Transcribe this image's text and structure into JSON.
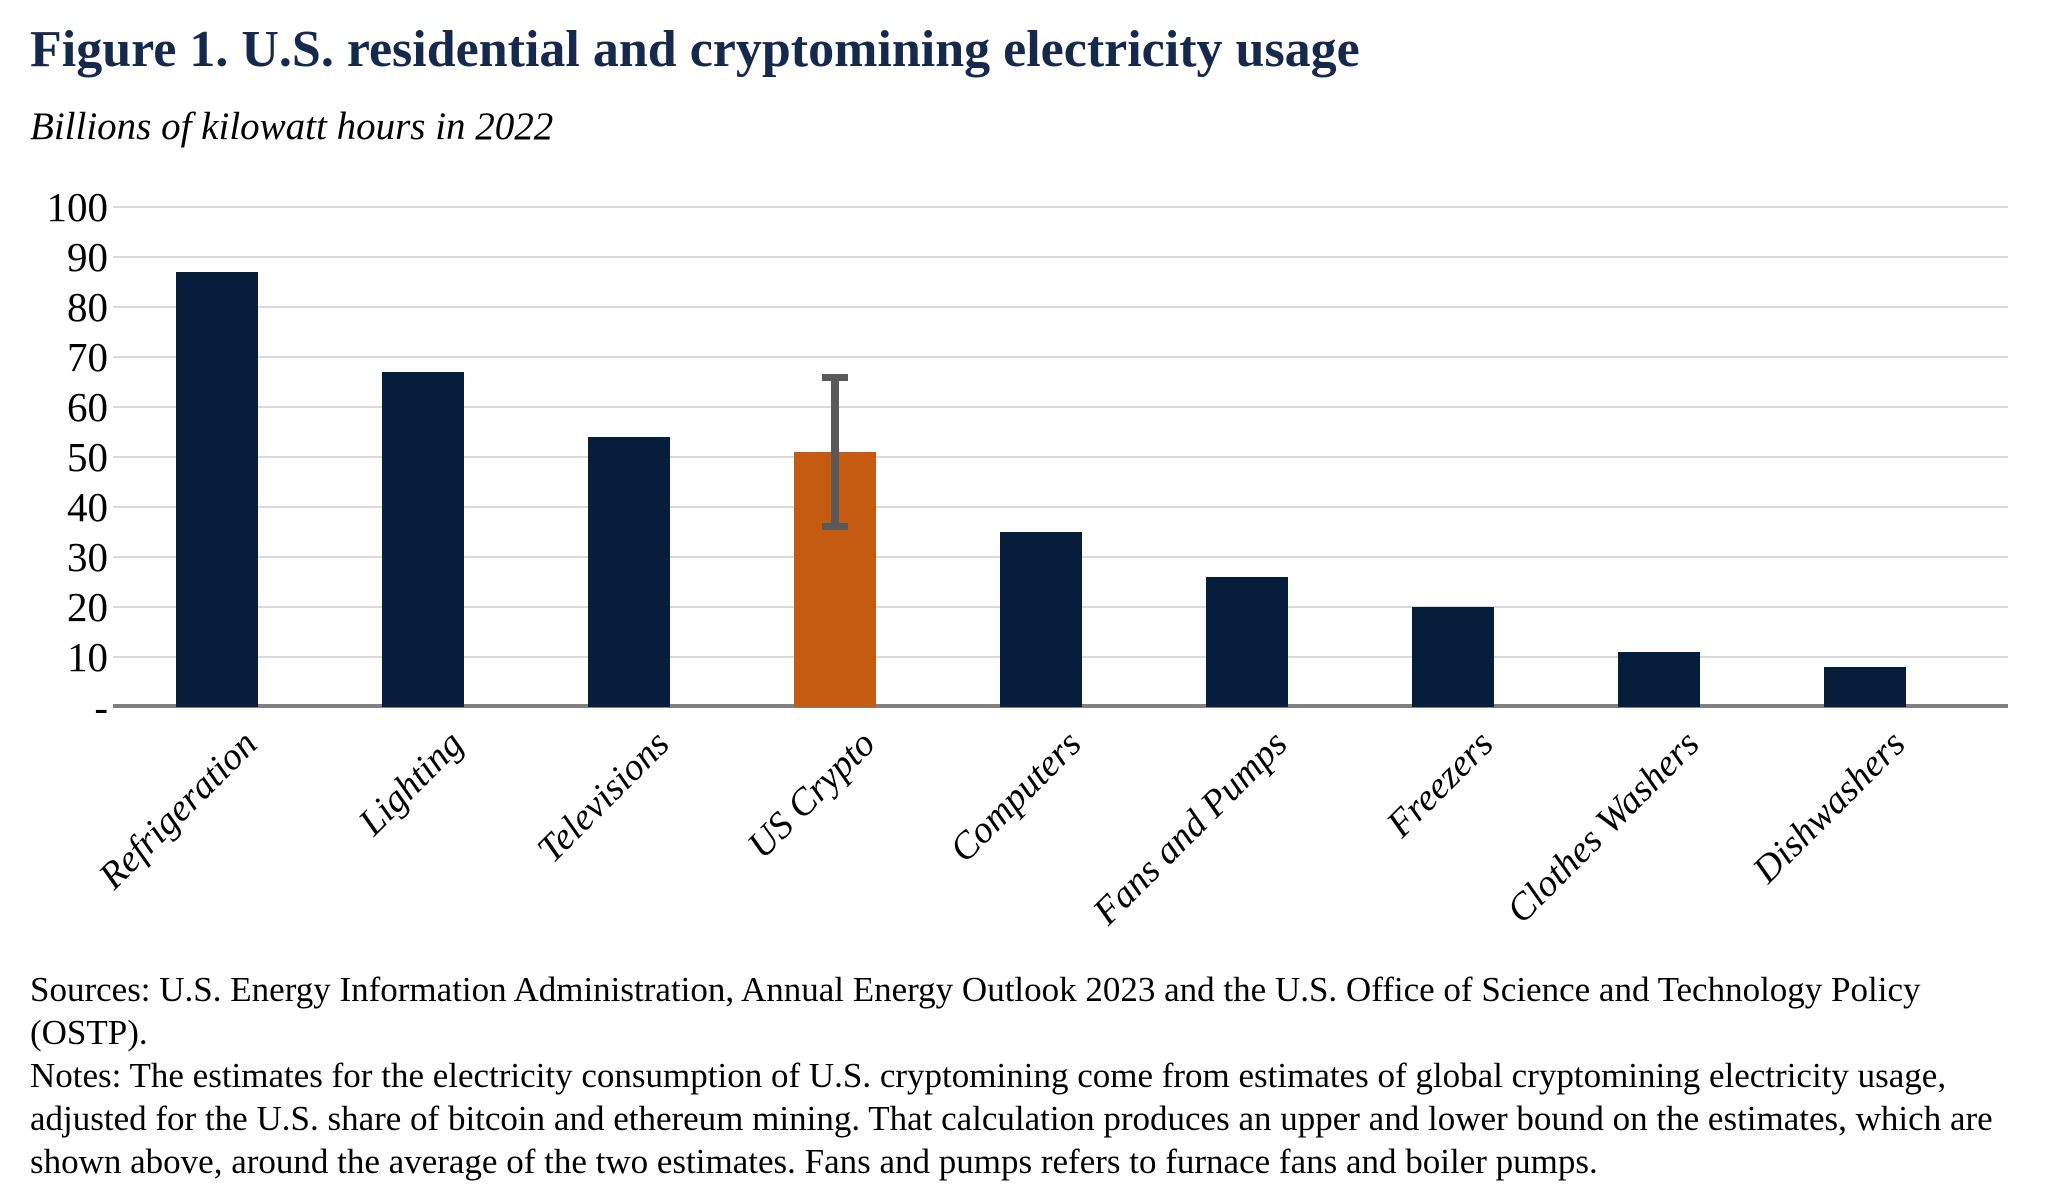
{
  "header": {
    "title": "Figure 1. U.S. residential and cryptomining electricity usage",
    "subtitle": "Billions of kilowatt hours in 2022"
  },
  "chart_data": {
    "type": "bar",
    "title": "Figure 1. U.S. residential and cryptomining electricity usage",
    "unit_label": "Billions of kilowatt hours in 2022",
    "categories": [
      "Refrigeration",
      "Lighting",
      "Televisions",
      "US Crypto",
      "Computers",
      "Fans and Pumps",
      "Freezers",
      "Clothes Washers",
      "Dishwashers"
    ],
    "values": [
      87,
      67,
      54,
      51,
      35,
      26,
      20,
      11,
      8
    ],
    "highlight_index": 3,
    "highlight_category": "US Crypto",
    "error_bar": {
      "category": "US Crypto",
      "lower": 36,
      "upper": 66
    },
    "ylim": [
      0,
      100
    ],
    "ytick_values": [
      100,
      90,
      80,
      70,
      60,
      50,
      40,
      30,
      20,
      10,
      0
    ],
    "ytick_labels": [
      "100",
      "90",
      "80",
      "70",
      "60",
      "50",
      "40",
      "30",
      "20",
      "10",
      "-"
    ],
    "grid": "horizontal",
    "legend": "none",
    "xlabel": "",
    "ylabel": "",
    "colors": {
      "bar": "#071d3c",
      "highlight": "#c55a11",
      "error_bar": "#595959",
      "gridline": "#d9d9d9",
      "axis_line": "#808080",
      "title_text": "#16294d"
    }
  },
  "footer": {
    "sources": "Sources: U.S. Energy Information Administration, Annual Energy Outlook 2023 and the U.S. Office of Science and Technology Policy (OSTP).",
    "notes": "Notes: The estimates for the electricity consumption of U.S. cryptomining come from estimates of global cryptomining electricity usage, adjusted for the U.S. share of bitcoin and ethereum mining. That calculation produces an upper and lower bound on the estimates, which are shown above, around the average of the two estimates. Fans and pumps refers to furnace fans and boiler pumps."
  }
}
